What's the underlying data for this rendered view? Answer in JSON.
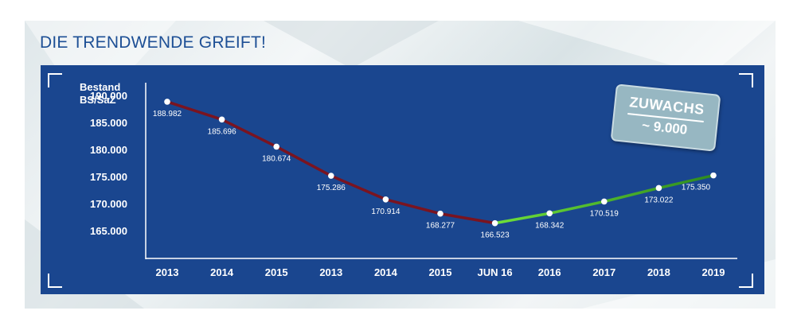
{
  "headline": "DIE TRENDWENDE GREIFT!",
  "badge": {
    "line1": "ZUWACHS",
    "line2": "~ 9.000"
  },
  "colors": {
    "panel": "#1a468f",
    "declining_line": "#7a1420",
    "rising_line_start": "#6fe03a",
    "rising_line_end": "#2e8a1e",
    "headline": "#1d4f95"
  },
  "chart_data": {
    "type": "line",
    "ylabel_lines": [
      "Bestand",
      "BS/SaZ"
    ],
    "categories": [
      "2013",
      "2014",
      "2015",
      "2013",
      "2014",
      "2015",
      "JUN 16",
      "2016",
      "2017",
      "2018",
      "2019"
    ],
    "values": [
      188982,
      185696,
      180674,
      175286,
      170914,
      168277,
      166523,
      168342,
      170519,
      173022,
      175350
    ],
    "value_labels": [
      "188.982",
      "185.696",
      "180.674",
      "175.286",
      "170.914",
      "168.277",
      "166.523",
      "168.342",
      "170.519",
      "173.022",
      "175.350"
    ],
    "y_ticks": [
      190000,
      185000,
      180000,
      175000,
      170000,
      165000
    ],
    "y_tick_labels": [
      "190.000",
      "185.000",
      "180.000",
      "175.000",
      "170.000",
      "165.000"
    ],
    "ylim": [
      160000,
      192500
    ],
    "segments": [
      {
        "kind": "declining",
        "from_index": 0,
        "to_index": 6
      },
      {
        "kind": "rising",
        "from_index": 6,
        "to_index": 10
      }
    ],
    "grid": false,
    "legend": "none"
  }
}
